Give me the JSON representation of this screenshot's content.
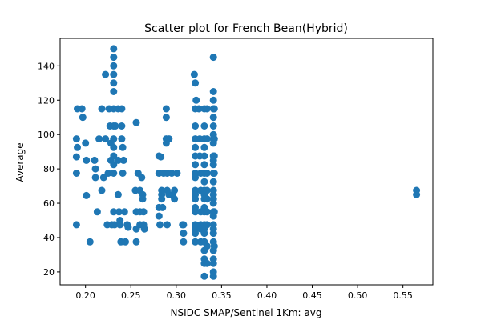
{
  "chart_data": {
    "type": "scatter",
    "title": "Scatter plot for French Bean(Hybrid)",
    "xlabel": "NSIDC SMAP/Sentinel 1Km: avg",
    "ylabel": "Average",
    "xlim": [
      0.172,
      0.583
    ],
    "ylim": [
      12.5,
      156
    ],
    "x_ticks": [
      "0.20",
      "0.25",
      "0.30",
      "0.35",
      "0.40",
      "0.45",
      "0.50",
      "0.55"
    ],
    "x_tick_values": [
      0.2,
      0.25,
      0.3,
      0.35,
      0.4,
      0.45,
      0.5,
      0.55
    ],
    "y_ticks": [
      "20",
      "40",
      "60",
      "80",
      "100",
      "120",
      "140"
    ],
    "y_tick_values": [
      20,
      40,
      60,
      80,
      100,
      120,
      140
    ],
    "grid": false,
    "marker_color": "#1f77b4",
    "points": [
      [
        0.191,
        115
      ],
      [
        0.19,
        97.5
      ],
      [
        0.191,
        92.5
      ],
      [
        0.19,
        87
      ],
      [
        0.19,
        77.5
      ],
      [
        0.19,
        47.5
      ],
      [
        0.196,
        115
      ],
      [
        0.197,
        110
      ],
      [
        0.2,
        95
      ],
      [
        0.201,
        85
      ],
      [
        0.201,
        64.5
      ],
      [
        0.205,
        37.5
      ],
      [
        0.21,
        85
      ],
      [
        0.211,
        80
      ],
      [
        0.211,
        75
      ],
      [
        0.213,
        55
      ],
      [
        0.215,
        97.5
      ],
      [
        0.218,
        67.5
      ],
      [
        0.218,
        115
      ],
      [
        0.22,
        75
      ],
      [
        0.222,
        135
      ],
      [
        0.222,
        97.5
      ],
      [
        0.224,
        47.5
      ],
      [
        0.225,
        77.5
      ],
      [
        0.226,
        115
      ],
      [
        0.227,
        105
      ],
      [
        0.228,
        95
      ],
      [
        0.228,
        85
      ],
      [
        0.229,
        47.5
      ],
      [
        0.231,
        150
      ],
      [
        0.231,
        145
      ],
      [
        0.231,
        140
      ],
      [
        0.231,
        135
      ],
      [
        0.231,
        130
      ],
      [
        0.231,
        125
      ],
      [
        0.231,
        115
      ],
      [
        0.231,
        105
      ],
      [
        0.231,
        97.5
      ],
      [
        0.231,
        92.5
      ],
      [
        0.231,
        87.5
      ],
      [
        0.231,
        82.5
      ],
      [
        0.231,
        77.5
      ],
      [
        0.231,
        55
      ],
      [
        0.232,
        47.5
      ],
      [
        0.233,
        105
      ],
      [
        0.236,
        115
      ],
      [
        0.236,
        85
      ],
      [
        0.236,
        65
      ],
      [
        0.237,
        55
      ],
      [
        0.238,
        50
      ],
      [
        0.238,
        47.5
      ],
      [
        0.239,
        37.5
      ],
      [
        0.24,
        115
      ],
      [
        0.24,
        105
      ],
      [
        0.24,
        97.5
      ],
      [
        0.241,
        92.5
      ],
      [
        0.241,
        77.5
      ],
      [
        0.242,
        85
      ],
      [
        0.243,
        55
      ],
      [
        0.244,
        37.5
      ],
      [
        0.246,
        47.5
      ],
      [
        0.247,
        46
      ],
      [
        0.256,
        107
      ],
      [
        0.255,
        67.5
      ],
      [
        0.256,
        55
      ],
      [
        0.256,
        45
      ],
      [
        0.256,
        37.5
      ],
      [
        0.258,
        77.5
      ],
      [
        0.26,
        67.5
      ],
      [
        0.26,
        55
      ],
      [
        0.26,
        47.5
      ],
      [
        0.262,
        75
      ],
      [
        0.263,
        65
      ],
      [
        0.263,
        62.5
      ],
      [
        0.264,
        55
      ],
      [
        0.264,
        47.5
      ],
      [
        0.265,
        45
      ],
      [
        0.281,
        87.5
      ],
      [
        0.281,
        77.5
      ],
      [
        0.281,
        57.5
      ],
      [
        0.281,
        52.5
      ],
      [
        0.282,
        47.5
      ],
      [
        0.283,
        87
      ],
      [
        0.284,
        67.5
      ],
      [
        0.284,
        65
      ],
      [
        0.284,
        62.5
      ],
      [
        0.285,
        57.5
      ],
      [
        0.286,
        77.5
      ],
      [
        0.289,
        115
      ],
      [
        0.289,
        110
      ],
      [
        0.289,
        97.5
      ],
      [
        0.289,
        95
      ],
      [
        0.29,
        77.5
      ],
      [
        0.29,
        67.5
      ],
      [
        0.29,
        47.5
      ],
      [
        0.292,
        97.5
      ],
      [
        0.292,
        65
      ],
      [
        0.295,
        77.5
      ],
      [
        0.296,
        65
      ],
      [
        0.298,
        67.5
      ],
      [
        0.298,
        62.5
      ],
      [
        0.301,
        77.5
      ],
      [
        0.307,
        47.5
      ],
      [
        0.308,
        47.5
      ],
      [
        0.308,
        42.5
      ],
      [
        0.308,
        37.5
      ],
      [
        0.32,
        135
      ],
      [
        0.321,
        130
      ],
      [
        0.321,
        115
      ],
      [
        0.321,
        105
      ],
      [
        0.321,
        97.5
      ],
      [
        0.321,
        92.5
      ],
      [
        0.321,
        87.5
      ],
      [
        0.321,
        82.5
      ],
      [
        0.321,
        77.5
      ],
      [
        0.321,
        75
      ],
      [
        0.321,
        67.5
      ],
      [
        0.321,
        65
      ],
      [
        0.321,
        62.5
      ],
      [
        0.321,
        57.5
      ],
      [
        0.321,
        55
      ],
      [
        0.321,
        47.5
      ],
      [
        0.321,
        45
      ],
      [
        0.321,
        42.5
      ],
      [
        0.321,
        37.5
      ],
      [
        0.322,
        120
      ],
      [
        0.325,
        115
      ],
      [
        0.326,
        97.5
      ],
      [
        0.326,
        87.5
      ],
      [
        0.327,
        77.5
      ],
      [
        0.327,
        67.5
      ],
      [
        0.327,
        55
      ],
      [
        0.327,
        47.5
      ],
      [
        0.327,
        45
      ],
      [
        0.327,
        37.5
      ],
      [
        0.331,
        115
      ],
      [
        0.331,
        105
      ],
      [
        0.331,
        97.5
      ],
      [
        0.331,
        92.5
      ],
      [
        0.331,
        87.5
      ],
      [
        0.331,
        82.5
      ],
      [
        0.331,
        77.5
      ],
      [
        0.331,
        72.5
      ],
      [
        0.331,
        67.5
      ],
      [
        0.331,
        65
      ],
      [
        0.331,
        62.5
      ],
      [
        0.331,
        57.5
      ],
      [
        0.331,
        55
      ],
      [
        0.331,
        47.5
      ],
      [
        0.331,
        45
      ],
      [
        0.331,
        42.5
      ],
      [
        0.331,
        37.5
      ],
      [
        0.331,
        32.5
      ],
      [
        0.331,
        27.5
      ],
      [
        0.331,
        25
      ],
      [
        0.331,
        17.5
      ],
      [
        0.334,
        115
      ],
      [
        0.334,
        97.5
      ],
      [
        0.334,
        77.5
      ],
      [
        0.334,
        67.5
      ],
      [
        0.334,
        62.5
      ],
      [
        0.334,
        55
      ],
      [
        0.334,
        47.5
      ],
      [
        0.334,
        35
      ],
      [
        0.334,
        25
      ],
      [
        0.341,
        145
      ],
      [
        0.341,
        125
      ],
      [
        0.341,
        120
      ],
      [
        0.341,
        115
      ],
      [
        0.341,
        110
      ],
      [
        0.341,
        105
      ],
      [
        0.341,
        100
      ],
      [
        0.341,
        97.5
      ],
      [
        0.341,
        95
      ],
      [
        0.341,
        87.5
      ],
      [
        0.341,
        85
      ],
      [
        0.341,
        82.5
      ],
      [
        0.341,
        77.5
      ],
      [
        0.341,
        72.5
      ],
      [
        0.341,
        67.5
      ],
      [
        0.341,
        65
      ],
      [
        0.341,
        62.5
      ],
      [
        0.341,
        60
      ],
      [
        0.341,
        55
      ],
      [
        0.341,
        52.5
      ],
      [
        0.341,
        47.5
      ],
      [
        0.341,
        45
      ],
      [
        0.341,
        42.5
      ],
      [
        0.341,
        37.5
      ],
      [
        0.341,
        32.5
      ],
      [
        0.341,
        27.5
      ],
      [
        0.341,
        25
      ],
      [
        0.341,
        20
      ],
      [
        0.341,
        17.5
      ],
      [
        0.342,
        115
      ],
      [
        0.342,
        97.5
      ],
      [
        0.342,
        87.5
      ],
      [
        0.342,
        77.5
      ],
      [
        0.342,
        55
      ],
      [
        0.342,
        35
      ],
      [
        0.565,
        67.5
      ],
      [
        0.565,
        65
      ]
    ]
  }
}
